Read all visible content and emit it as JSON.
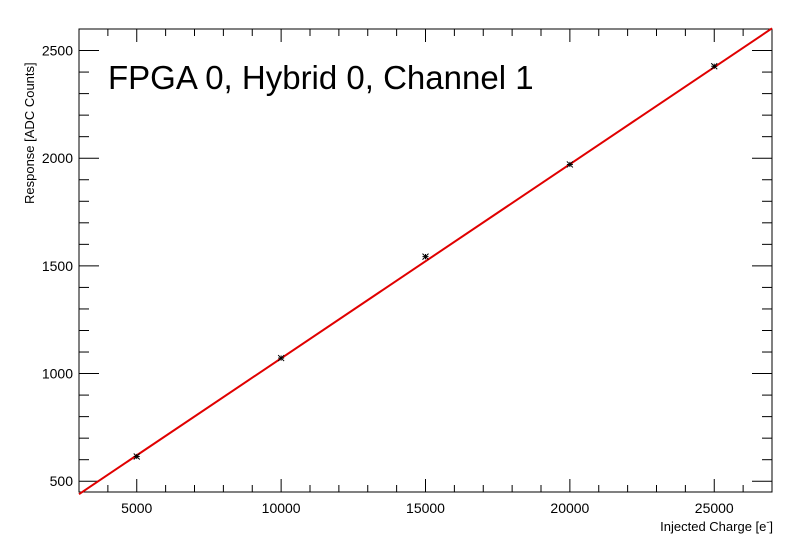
{
  "chart_data": {
    "type": "scatter",
    "title": "FPGA 0, Hybrid 0, Channel 1",
    "xlabel": "Injected Charge [e",
    "xlabel_superscript": "-",
    "xlabel_suffix": "]",
    "ylabel": "Response [ADC Counts]",
    "xlim": [
      3000,
      27000
    ],
    "ylim": [
      450,
      2600
    ],
    "x_major_ticks": [
      5000,
      10000,
      15000,
      20000,
      25000
    ],
    "x_tick_labels": [
      "5000",
      "10000",
      "15000",
      "20000",
      "25000"
    ],
    "y_major_ticks": [
      500,
      1000,
      1500,
      2000,
      2500
    ],
    "y_tick_labels": [
      "500",
      "1000",
      "1500",
      "2000",
      "2500"
    ],
    "x_minor_step": 1000,
    "y_minor_step": 100,
    "grid": false,
    "series": [
      {
        "type": "scatter",
        "x": [
          5000,
          10000,
          15000,
          20000,
          25000
        ],
        "y": [
          615,
          1072,
          1543,
          1971,
          2427
        ],
        "y_err": [
          12,
          12,
          12,
          12,
          12
        ],
        "color": "#000000"
      },
      {
        "type": "line",
        "x": [
          3000,
          27000
        ],
        "y": [
          440,
          2603
        ],
        "color": "#e00000"
      }
    ]
  }
}
